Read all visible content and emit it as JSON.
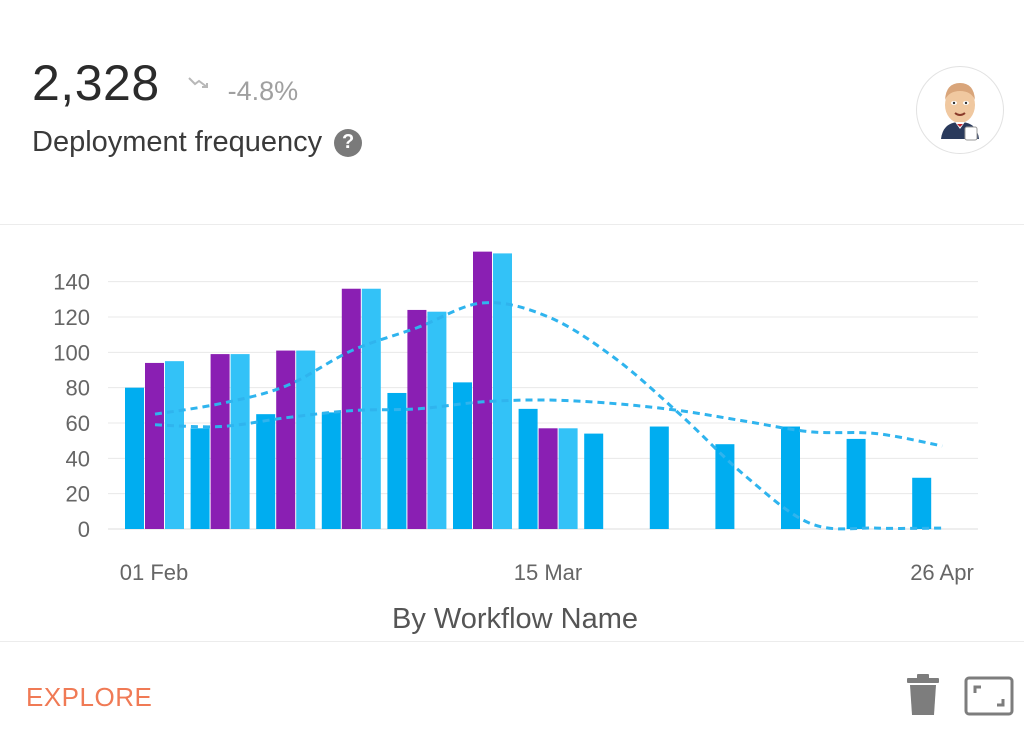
{
  "metric": {
    "value": "2,328",
    "change": "-4.8%",
    "label": "Deployment frequency",
    "help_symbol": "?",
    "trend_icon": "trend-down-icon"
  },
  "avatar": {
    "icon": "jenkins-butler-avatar"
  },
  "footer": {
    "explore_label": "EXPLORE",
    "delete_icon": "trash-icon",
    "expand_icon": "expand-icon"
  },
  "colors": {
    "blue": "#00adf0",
    "purple": "#8a1fb3",
    "light_blue": "#33c2f7",
    "accent": "#f07a55"
  },
  "chart_data": {
    "type": "bar",
    "xlabel": "By Workflow Name",
    "ylabel": "",
    "ylim": [
      0,
      150
    ],
    "yticks": [
      0,
      20,
      40,
      60,
      80,
      100,
      120,
      140
    ],
    "xtick_labels": [
      "01 Feb",
      "15 Mar",
      "26 Apr"
    ],
    "grid": true,
    "groups": [
      [
        80,
        94,
        95
      ],
      [
        57,
        99,
        99
      ],
      [
        65,
        101,
        101
      ],
      [
        66,
        136,
        136
      ],
      [
        77,
        124,
        123
      ],
      [
        83,
        157,
        156
      ],
      [
        68,
        57,
        57
      ],
      [
        54
      ],
      [
        58
      ],
      [
        48
      ],
      [
        58
      ],
      [
        51
      ],
      [
        29
      ]
    ],
    "group_colors": [
      "#00adf0",
      "#8a1fb3",
      "#33c2f7"
    ],
    "trend_lines": [
      {
        "style": "dashed",
        "points": [
          [
            0,
            65
          ],
          [
            1,
            71
          ],
          [
            2,
            81
          ],
          [
            3,
            101
          ],
          [
            4,
            114
          ],
          [
            5,
            128
          ],
          [
            6,
            120
          ],
          [
            7,
            97
          ],
          [
            8,
            65
          ],
          [
            9,
            30
          ],
          [
            10,
            3
          ],
          [
            11,
            0.5
          ],
          [
            12,
            0.5
          ]
        ]
      },
      {
        "style": "dashed",
        "points": [
          [
            0,
            59
          ],
          [
            1,
            58
          ],
          [
            2,
            63
          ],
          [
            3,
            67
          ],
          [
            4,
            68
          ],
          [
            5,
            72
          ],
          [
            6,
            73
          ],
          [
            7,
            71
          ],
          [
            8,
            67
          ],
          [
            9,
            61
          ],
          [
            10,
            55
          ],
          [
            11,
            54
          ],
          [
            12,
            47
          ]
        ]
      }
    ]
  }
}
